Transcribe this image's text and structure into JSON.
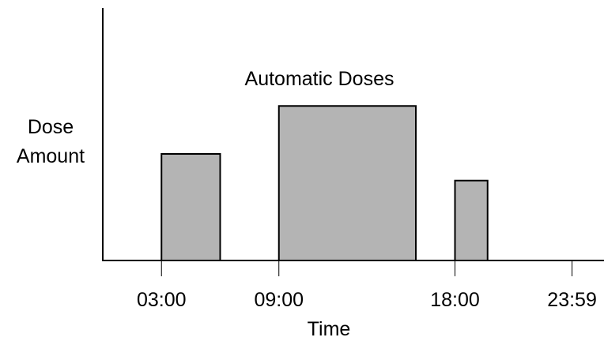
{
  "chart_data": {
    "type": "bar",
    "title": "Automatic Doses",
    "xlabel": "Time",
    "ylabel_lines": [
      "Dose",
      "Amount"
    ],
    "tick_labels": [
      "03:00",
      "09:00",
      "18:00",
      "23:59"
    ],
    "bars": [
      {
        "start": "03:00",
        "end": "06:00",
        "value": 1.0
      },
      {
        "start": "09:00",
        "end": "16:00",
        "value": 1.45
      },
      {
        "start": "18:00",
        "end": "19:40",
        "value": 0.75
      }
    ],
    "x_range": [
      "00:00",
      "23:59"
    ],
    "ylim": [
      0,
      1.6
    ],
    "grid": false,
    "colors": {
      "bar_fill": "#b4b4b4",
      "bar_stroke": "#000000",
      "axis": "#000000"
    }
  }
}
